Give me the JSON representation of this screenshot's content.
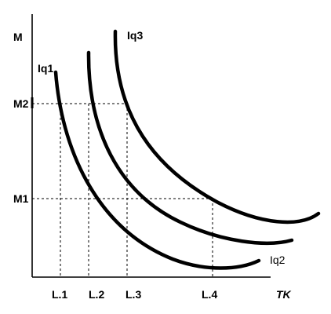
{
  "chart_data": {
    "type": "line",
    "title": "",
    "xlabel": "TK",
    "ylabel": "M",
    "x_ticks": [
      "L.1",
      "L.2",
      "L.3",
      "L.4"
    ],
    "y_ticks": [
      "M1",
      "M2"
    ],
    "series": [
      {
        "name": "Iq1",
        "points": [
          [
            "L.1",
            "M2"
          ],
          [
            "L.2",
            "between M1 and M2"
          ],
          [
            "L.4",
            "below M1"
          ]
        ]
      },
      {
        "name": "Iq2",
        "points": [
          [
            "L.2",
            "M2"
          ],
          [
            "L.4",
            "M1"
          ]
        ]
      },
      {
        "name": "Iq3",
        "points": [
          [
            "L.3",
            "M2"
          ],
          [
            "past L.4",
            "below M1"
          ]
        ]
      }
    ],
    "grid": false
  }
}
